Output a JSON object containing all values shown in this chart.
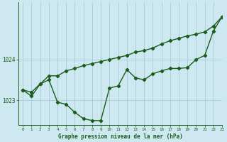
{
  "title": "Graphe pression niveau de la mer (hPa)",
  "bg_color": "#cde8f0",
  "line_color": "#1a5c1a",
  "grid_color": "#a8ccd8",
  "axis_color": "#1a5c1a",
  "xlim": [
    -0.5,
    23
  ],
  "ylim": [
    1022.4,
    1025.4
  ],
  "yticks": [
    1023,
    1024
  ],
  "xticks": [
    0,
    1,
    2,
    3,
    4,
    5,
    6,
    7,
    8,
    9,
    10,
    11,
    12,
    13,
    14,
    15,
    16,
    17,
    18,
    19,
    20,
    21,
    22,
    23
  ],
  "series1_x": [
    0,
    1,
    2,
    3,
    4,
    5,
    6,
    7,
    8,
    9,
    10,
    11,
    12,
    13,
    14,
    15,
    16,
    17,
    18,
    19,
    20,
    21,
    22,
    23
  ],
  "series1_y": [
    1023.25,
    1023.1,
    1023.4,
    1023.5,
    1022.95,
    1022.9,
    1022.7,
    1022.55,
    1022.5,
    1022.5,
    1023.3,
    1023.35,
    1023.75,
    1023.55,
    1023.5,
    1023.65,
    1023.72,
    1023.78,
    1023.78,
    1023.8,
    1024.0,
    1024.1,
    1024.7,
    1025.05
  ],
  "series2_x": [
    0,
    1,
    2,
    3,
    4,
    5,
    6,
    7,
    8,
    9,
    10,
    11,
    12,
    13,
    14,
    15,
    16,
    17,
    18,
    19,
    20,
    21,
    22,
    23
  ],
  "series2_y": [
    1023.25,
    1023.2,
    1023.4,
    1023.6,
    1023.6,
    1023.72,
    1023.78,
    1023.85,
    1023.9,
    1023.95,
    1024.0,
    1024.05,
    1024.1,
    1024.18,
    1024.22,
    1024.28,
    1024.38,
    1024.46,
    1024.52,
    1024.58,
    1024.62,
    1024.68,
    1024.82,
    1025.05
  ],
  "marker": "D",
  "markersize": 2.2,
  "linewidth": 1.0
}
